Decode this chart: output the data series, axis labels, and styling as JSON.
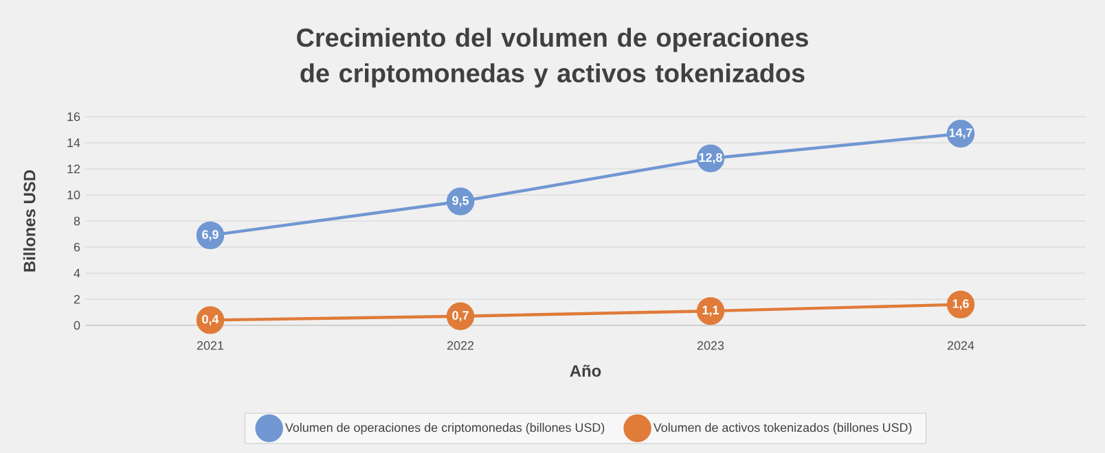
{
  "chart_data": {
    "type": "line",
    "title": "Crecimiento del volumen de operaciones de criptomonedas y activos tokenizados",
    "xlabel": "Año",
    "ylabel": "Billones USD",
    "categories": [
      "2021",
      "2022",
      "2023",
      "2024"
    ],
    "series": [
      {
        "name": "Volumen de operaciones de criptomonedas (billones USD)",
        "color": "#7097d2",
        "values": [
          6.9,
          9.5,
          12.8,
          14.7
        ],
        "value_labels": [
          "6,9",
          "9,5",
          "12,8",
          "14,7"
        ]
      },
      {
        "name": "Volumen de activos tokenizados (billones USD)",
        "color": "#e07b39",
        "values": [
          0.4,
          0.7,
          1.1,
          1.6
        ],
        "value_labels": [
          "0,4",
          "0,7",
          "1,1",
          "1,6"
        ]
      }
    ],
    "ylim": [
      0,
      16
    ],
    "yticks": [
      0,
      2,
      4,
      6,
      8,
      10,
      12,
      14,
      16
    ],
    "grid": "y",
    "legend": "bottom",
    "marker": "circle",
    "line_style": "solid"
  }
}
